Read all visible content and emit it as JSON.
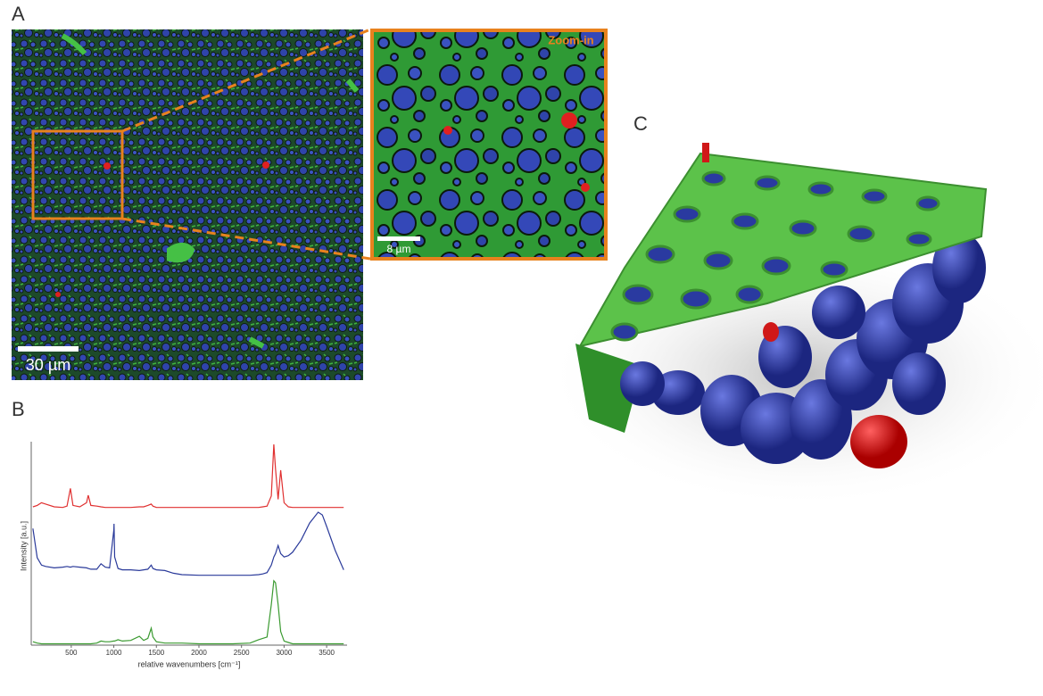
{
  "panels": {
    "a": {
      "label": "A",
      "scale_bar": "30 µm",
      "zoom_label": "Zoom-in",
      "zoom_scale_bar": "8 µm"
    },
    "b": {
      "label": "B"
    },
    "c": {
      "label": "C"
    }
  },
  "chart_data": {
    "type": "line",
    "xlabel": "relative wavenumbers [cm⁻¹]",
    "ylabel": "Intensity [a.u.]",
    "x": [
      50,
      100,
      150,
      200,
      300,
      400,
      450,
      490,
      520,
      600,
      680,
      700,
      730,
      800,
      850,
      900,
      950,
      1000,
      1003,
      1010,
      1050,
      1100,
      1200,
      1300,
      1350,
      1400,
      1440,
      1460,
      1500,
      1600,
      1700,
      1800,
      2000,
      2200,
      2400,
      2600,
      2700,
      2750,
      2800,
      2850,
      2880,
      2900,
      2930,
      2960,
      3000,
      3050,
      3100,
      3200,
      3300,
      3400,
      3450,
      3500,
      3600,
      3700
    ],
    "series": [
      {
        "color": "#e03030",
        "values": [
          2.04,
          2.06,
          2.1,
          2.08,
          2.04,
          2.03,
          2.05,
          2.31,
          2.06,
          2.04,
          2.1,
          2.21,
          2.06,
          2.05,
          2.04,
          2.03,
          2.03,
          2.03,
          2.03,
          2.03,
          2.03,
          2.03,
          2.03,
          2.04,
          2.04,
          2.06,
          2.08,
          2.05,
          2.03,
          2.03,
          2.03,
          2.03,
          2.03,
          2.03,
          2.03,
          2.03,
          2.03,
          2.04,
          2.05,
          2.2,
          2.96,
          2.6,
          2.15,
          2.58,
          2.1,
          2.04,
          2.03,
          2.03,
          2.03,
          2.03,
          2.03,
          2.03,
          2.03,
          2.03
        ]
      },
      {
        "color": "#2a3a9a",
        "values": [
          1.72,
          1.29,
          1.18,
          1.16,
          1.14,
          1.15,
          1.16,
          1.15,
          1.16,
          1.15,
          1.14,
          1.13,
          1.12,
          1.12,
          1.2,
          1.15,
          1.14,
          1.7,
          1.79,
          1.3,
          1.13,
          1.11,
          1.11,
          1.1,
          1.11,
          1.12,
          1.18,
          1.13,
          1.11,
          1.1,
          1.06,
          1.04,
          1.03,
          1.03,
          1.03,
          1.03,
          1.04,
          1.05,
          1.07,
          1.18,
          1.3,
          1.35,
          1.47,
          1.35,
          1.3,
          1.32,
          1.37,
          1.55,
          1.8,
          1.96,
          1.92,
          1.75,
          1.4,
          1.11
        ]
      },
      {
        "color": "#3a9a30",
        "values": [
          0.05,
          0.03,
          0.02,
          0.02,
          0.02,
          0.02,
          0.02,
          0.02,
          0.02,
          0.02,
          0.02,
          0.02,
          0.02,
          0.03,
          0.06,
          0.05,
          0.05,
          0.06,
          0.06,
          0.06,
          0.08,
          0.06,
          0.07,
          0.13,
          0.07,
          0.1,
          0.25,
          0.12,
          0.05,
          0.03,
          0.03,
          0.03,
          0.02,
          0.02,
          0.02,
          0.03,
          0.08,
          0.1,
          0.12,
          0.6,
          0.95,
          0.92,
          0.6,
          0.2,
          0.06,
          0.04,
          0.02,
          0.02,
          0.02,
          0.02,
          0.02,
          0.02,
          0.02,
          0.02
        ]
      }
    ],
    "xlim": [
      30,
      3740
    ],
    "ylim": [
      0,
      3
    ],
    "xticks": [
      500,
      1000,
      1500,
      2000,
      2500,
      3000,
      3500
    ]
  }
}
